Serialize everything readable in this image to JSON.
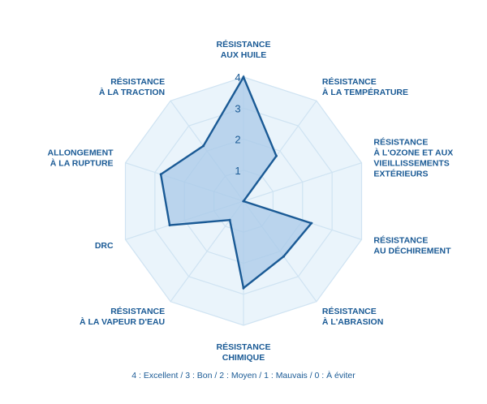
{
  "chart_data": {
    "type": "radar",
    "axes": [
      [
        "RÉSISTANCE",
        "AUX HUILE"
      ],
      [
        "RÉSISTANCE",
        "À LA TEMPÉRATURE"
      ],
      [
        "RÉSISTANCE",
        "À L'OZONE ET AUX",
        "VIEILLISSEMENTS",
        "EXTÉRIEURS"
      ],
      [
        "RÉSISTANCE",
        "AU DÉCHIREMENT"
      ],
      [
        "RÉSISTANCE",
        "À L'ABRASION"
      ],
      [
        "RÉSISTANCE",
        "CHIMIQUE"
      ],
      [
        "RÉSISTANCE",
        "À LA VAPEUR D'EAU"
      ],
      [
        "DRC"
      ],
      [
        "ALLONGEMENT",
        "À LA RUPTURE"
      ],
      [
        "RÉSISTANCE",
        "À LA TRACTION"
      ]
    ],
    "values": [
      4,
      1.8,
      0,
      2.3,
      2.2,
      2.8,
      0.75,
      2.5,
      2.8,
      2.2
    ],
    "rmax": 4,
    "ticks": [
      "1",
      "2",
      "3",
      "4"
    ],
    "colors": {
      "grid_fill": "#eaf4fb",
      "grid_line": "#cfe3f2",
      "data_fill": "#a9c9e8",
      "data_stroke": "#1a5a95"
    }
  },
  "legend": "4 : Excellent / 3 : Bon / 2 :  Moyen / 1 : Mauvais / 0 : À éviter"
}
